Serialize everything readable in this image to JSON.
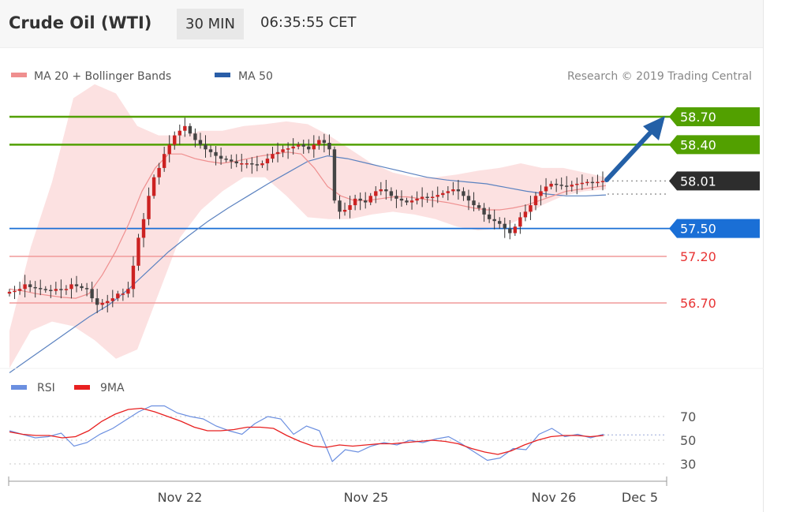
{
  "header": {
    "instrument": "Crude Oil (WTI)",
    "timeframe": "30 MIN",
    "time": "06:35:55 CET"
  },
  "credit": "Research © 2019 Trading Central",
  "colors": {
    "green": "#52a000",
    "blue": "#1a6fd6",
    "red": "#e83434",
    "pink_band": "#fcdcdc",
    "ma20": "#ef8f8f",
    "ma50": "#5b82c0",
    "rsi": "#6b8fe0",
    "rsi_ma": "#e82020",
    "arrow": "#2460a7",
    "candle_up": "#cc2222",
    "candle_down": "#444444"
  },
  "chart_data": [
    {
      "type": "candlestick",
      "legend": [
        "MA 20 + Bollinger Bands",
        "MA 50"
      ],
      "legend_placement": "top-left",
      "ylim": [
        56.0,
        59.3
      ],
      "x_ticks": [
        "Nov 22",
        "Nov 25",
        "Nov 26",
        "Dec 5"
      ],
      "price_levels": [
        {
          "label": "58.70",
          "value": 58.7,
          "style": "resistance-green"
        },
        {
          "label": "58.40",
          "value": 58.4,
          "style": "resistance-green"
        },
        {
          "label": "58.01",
          "value": 58.01,
          "style": "last-price"
        },
        {
          "label": "57.50",
          "value": 57.5,
          "style": "pivot-blue"
        },
        {
          "label": "57.20",
          "value": 57.2,
          "style": "support-red"
        },
        {
          "label": "56.70",
          "value": 56.7,
          "style": "support-red"
        }
      ],
      "close": [
        56.82,
        56.83,
        56.85,
        56.9,
        56.87,
        56.86,
        56.85,
        56.84,
        56.83,
        56.85,
        56.84,
        56.85,
        56.9,
        56.88,
        56.86,
        56.85,
        56.75,
        56.68,
        56.7,
        56.72,
        56.75,
        56.8,
        56.8,
        56.85,
        57.1,
        57.4,
        57.6,
        57.85,
        58.05,
        58.15,
        58.3,
        58.4,
        58.5,
        58.55,
        58.6,
        58.52,
        58.45,
        58.4,
        58.35,
        58.32,
        58.28,
        58.25,
        58.24,
        58.22,
        58.2,
        58.2,
        58.2,
        58.19,
        58.18,
        58.2,
        58.25,
        58.3,
        58.32,
        58.35,
        58.36,
        58.38,
        58.4,
        58.38,
        58.35,
        58.4,
        58.45,
        58.42,
        58.35,
        57.8,
        57.68,
        57.7,
        57.75,
        57.82,
        57.8,
        57.78,
        57.85,
        57.9,
        57.92,
        57.9,
        57.85,
        57.82,
        57.8,
        57.78,
        57.8,
        57.82,
        57.84,
        57.83,
        57.84,
        57.86,
        57.88,
        57.9,
        57.92,
        57.9,
        57.85,
        57.8,
        57.75,
        57.72,
        57.65,
        57.6,
        57.58,
        57.55,
        57.5,
        57.45,
        57.52,
        57.62,
        57.68,
        57.75,
        57.85,
        57.9,
        57.95,
        57.98,
        57.97,
        57.96,
        57.95,
        57.97,
        57.98,
        57.99,
        58.0,
        57.99,
        58.0,
        58.01
      ],
      "ma20": [
        56.85,
        56.83,
        56.8,
        56.78,
        56.76,
        56.75,
        56.8,
        57.0,
        57.25,
        57.55,
        57.9,
        58.15,
        58.3,
        58.3,
        58.25,
        58.22,
        58.2,
        58.22,
        58.25,
        58.28,
        58.3,
        58.32,
        58.3,
        58.15,
        57.95,
        57.85,
        57.8,
        57.8,
        57.82,
        57.84,
        57.84,
        57.82,
        57.8,
        57.78,
        57.75,
        57.72,
        57.7,
        57.7,
        57.72,
        57.75,
        57.8,
        57.85,
        57.9,
        57.92,
        57.94,
        57.96
      ],
      "ma50": [
        55.95,
        56.1,
        56.25,
        56.4,
        56.55,
        56.68,
        56.85,
        57.05,
        57.25,
        57.42,
        57.58,
        57.72,
        57.85,
        57.98,
        58.1,
        58.22,
        58.28,
        58.25,
        58.2,
        58.15,
        58.1,
        58.05,
        58.02,
        58.0,
        57.98,
        57.94,
        57.9,
        57.87,
        57.85,
        57.85,
        57.86
      ],
      "bollinger": {
        "upper": [
          56.4,
          57.3,
          58.0,
          58.9,
          59.05,
          58.95,
          58.6,
          58.5,
          58.5,
          58.55,
          58.55,
          58.6,
          58.62,
          58.65,
          58.62,
          58.5,
          58.35,
          58.2,
          58.1,
          58.05,
          58.05,
          58.08,
          58.12,
          58.15,
          58.2,
          58.15,
          58.15,
          58.1,
          58.05
        ],
        "lower": [
          56.0,
          56.4,
          56.5,
          56.45,
          56.3,
          56.1,
          56.2,
          56.8,
          57.4,
          57.7,
          57.9,
          58.05,
          58.05,
          57.85,
          57.62,
          57.6,
          57.6,
          57.65,
          57.68,
          57.65,
          57.6,
          57.52,
          57.48,
          57.5,
          57.6,
          57.75,
          57.85,
          57.9,
          57.92
        ]
      }
    },
    {
      "type": "line",
      "legend": [
        "RSI",
        "9MA"
      ],
      "legend_placement": "top-left",
      "ylim": [
        20,
        80
      ],
      "y_ticks": [
        "70",
        "50",
        "30"
      ],
      "series": [
        {
          "name": "RSI",
          "values": [
            58,
            55,
            52,
            53,
            56,
            45,
            48,
            55,
            60,
            67,
            74,
            79,
            79,
            73,
            70,
            68,
            62,
            58,
            55,
            64,
            70,
            68,
            55,
            62,
            58,
            32,
            42,
            40,
            45,
            48,
            46,
            50,
            48,
            51,
            53,
            47,
            40,
            33,
            35,
            43,
            42,
            55,
            60,
            53,
            55,
            52,
            55
          ]
        },
        {
          "name": "9MA",
          "values": [
            57,
            55,
            54,
            54,
            52,
            53,
            58,
            66,
            72,
            76,
            77,
            74,
            70,
            66,
            61,
            58,
            58,
            59,
            61,
            61,
            60,
            54,
            49,
            45,
            44,
            46,
            45,
            46,
            47,
            47,
            48,
            49,
            50,
            49,
            47,
            43,
            40,
            38,
            41,
            46,
            50,
            53,
            54,
            54,
            53,
            54
          ]
        }
      ]
    }
  ]
}
